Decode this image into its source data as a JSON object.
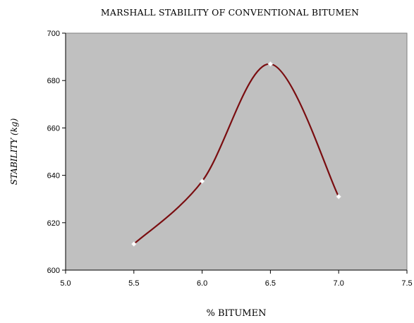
{
  "chart_data": {
    "type": "line",
    "title": "MARSHALL STABILITY OF CONVENTIONAL BITUMEN",
    "xlabel": "% BITUMEN",
    "ylabel": "STABILITY (kg)",
    "xlim": [
      5.0,
      7.5
    ],
    "ylim": [
      600,
      700
    ],
    "xticks": [
      "5.0",
      "5.5",
      "6.0",
      "6.5",
      "7.0",
      "7.5"
    ],
    "yticks": [
      "600",
      "620",
      "640",
      "660",
      "680",
      "700"
    ],
    "grid": false,
    "plot_background": "#c0c0c0",
    "series_color": "#7a0d10",
    "marker_color": "#ffffff",
    "smooth": true,
    "series": [
      {
        "x": [
          5.5,
          6.0,
          6.5,
          7.0
        ],
        "y": [
          611,
          637.5,
          687,
          631
        ]
      }
    ]
  }
}
